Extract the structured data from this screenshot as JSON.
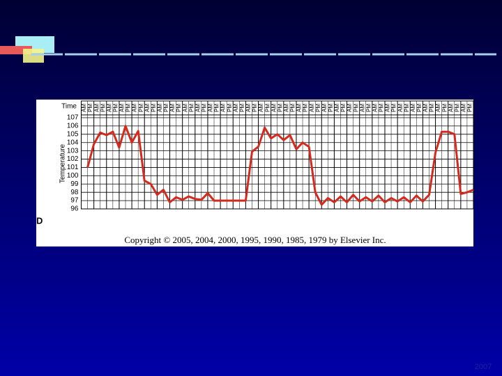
{
  "chart_data": {
    "type": "line",
    "x_label": "Time",
    "y_label": "Temperature",
    "panel_label": "D",
    "copyright": "Copyright © 2005, 2004, 2000, 1995, 1990, 1985, 1979 by Elsevier Inc.",
    "footer": "2007",
    "categories": [
      "AM",
      "PM",
      "AM",
      "PM",
      "AM",
      "PM",
      "AM",
      "PM",
      "AM",
      "PM",
      "AM",
      "PM",
      "AM",
      "PM",
      "AM",
      "PM",
      "AM",
      "PM",
      "AM",
      "PM",
      "AM",
      "PM",
      "AM",
      "PM",
      "AM",
      "PM",
      "AM",
      "PM",
      "AM",
      "PM",
      "AM",
      "PM",
      "AM",
      "PM",
      "AM",
      "PM",
      "AM",
      "PM",
      "AM",
      "PM",
      "AM",
      "PM",
      "AM",
      "PM",
      "AM",
      "PM",
      "AM",
      "PM",
      "AM",
      "PM",
      "AM",
      "PM",
      "AM",
      "PM",
      "AM",
      "PM",
      "AM",
      "PM",
      "AM",
      "PM",
      "AM",
      "PM"
    ],
    "values": [
      101,
      103.8,
      105.2,
      104.9,
      105.3,
      103.4,
      106,
      104,
      105.4,
      99.4,
      99,
      97.7,
      98.3,
      96.8,
      97.4,
      97.1,
      97.5,
      97.2,
      97.1,
      97.9,
      97,
      97,
      97,
      97,
      97,
      97,
      102.9,
      103.5,
      105.8,
      104.5,
      105,
      104.3,
      104.9,
      103.2,
      104,
      103.5,
      98,
      96.5,
      97.3,
      96.8,
      97.5,
      96.8,
      97.7,
      96.9,
      97.4,
      96.9,
      97.6,
      96.8,
      97.3,
      96.9,
      97.4,
      96.8,
      97.6,
      96.9,
      97.7,
      102.8,
      105.3,
      105.3,
      105,
      97.8,
      98,
      98.3
    ],
    "color": "#d42a1e",
    "ylim": [
      96,
      107
    ],
    "yticks": [
      96,
      97,
      98,
      99,
      100,
      101,
      102,
      103,
      104,
      105,
      106,
      107
    ],
    "grid": true
  }
}
